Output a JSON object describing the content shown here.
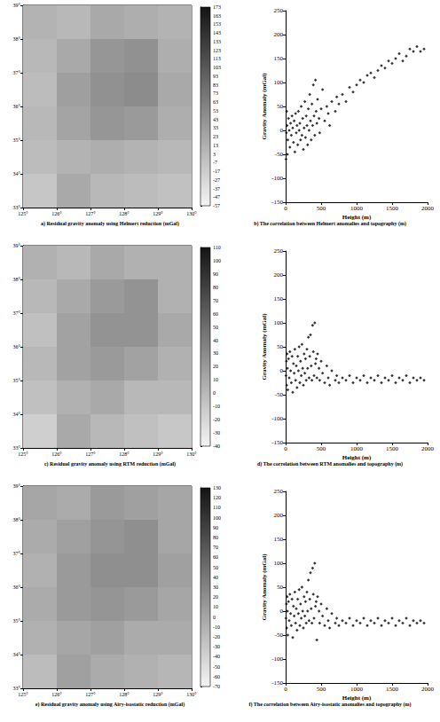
{
  "chart_data": [
    {
      "type": "heatmap",
      "title": "a) Residual gravity anomaly using Helmert reduction (mGal)",
      "xlim": [
        125,
        130
      ],
      "xticks": [
        {
          "value": 125,
          "label": "125°"
        },
        {
          "value": 126,
          "label": "126°"
        },
        {
          "value": 127,
          "label": "127°"
        },
        {
          "value": 128,
          "label": "128°"
        },
        {
          "value": 129,
          "label": "129°"
        },
        {
          "value": 130,
          "label": "130°"
        }
      ],
      "ylim": [
        33,
        39
      ],
      "yticks": [
        {
          "value": 33,
          "label": "33°"
        },
        {
          "value": 34,
          "label": "34°"
        },
        {
          "value": 35,
          "label": "35°"
        },
        {
          "value": 36,
          "label": "36°"
        },
        {
          "value": 37,
          "label": "37°"
        },
        {
          "value": 38,
          "label": "38°"
        },
        {
          "value": 39,
          "label": "39°"
        }
      ],
      "grid": true,
      "x_edges": [
        125,
        126,
        127,
        128,
        129,
        130
      ],
      "y_edges": [
        33,
        34,
        35,
        36,
        37,
        38,
        39
      ],
      "cells": [
        [
          -10,
          20,
          5,
          0,
          -5
        ],
        [
          0,
          10,
          15,
          10,
          5
        ],
        [
          5,
          25,
          40,
          35,
          15
        ],
        [
          0,
          30,
          45,
          50,
          20
        ],
        [
          5,
          20,
          40,
          45,
          15
        ],
        [
          10,
          5,
          20,
          15,
          10
        ]
      ],
      "colorbar": {
        "range": [
          -57,
          173
        ],
        "ticks": [
          -57,
          -47,
          -37,
          -27,
          -17,
          -7,
          3,
          13,
          23,
          33,
          43,
          53,
          63,
          73,
          83,
          93,
          103,
          113,
          123,
          133,
          143,
          153,
          163,
          173
        ]
      }
    },
    {
      "type": "scatter",
      "title": "b) The correlation between Helmert anomalies and topography (m)",
      "x_label": "Height (m)",
      "y_label": "Gravity Anomaly (mGal)",
      "xlim": [
        0,
        2000
      ],
      "xticks": [
        0,
        500,
        1000,
        1500,
        2000
      ],
      "ylim": [
        -150,
        250
      ],
      "yticks": [
        -150,
        -100,
        -50,
        0,
        50,
        100,
        150,
        200,
        250
      ],
      "grid": false,
      "series": [
        {
          "color": "#000000",
          "marker": "diamond",
          "x": [
            5,
            10,
            15,
            20,
            25,
            30,
            40,
            50,
            60,
            70,
            80,
            90,
            100,
            110,
            120,
            130,
            140,
            150,
            160,
            170,
            180,
            190,
            200,
            210,
            220,
            230,
            240,
            250,
            260,
            270,
            280,
            290,
            300,
            310,
            320,
            330,
            340,
            350,
            360,
            370,
            380,
            390,
            400,
            410,
            420,
            430,
            440,
            450,
            470,
            480,
            500,
            520,
            550,
            580,
            600,
            620,
            650,
            700,
            720,
            750,
            800,
            850,
            900,
            950,
            1000,
            1050,
            1100,
            1150,
            1200,
            1250,
            1300,
            1350,
            1400,
            1450,
            1500,
            1550,
            1600,
            1650,
            1700,
            1750,
            1800,
            1850,
            1900,
            1950
          ],
          "values": [
            -60,
            -5,
            40,
            10,
            -50,
            -20,
            25,
            0,
            -35,
            15,
            -10,
            30,
            5,
            -25,
            20,
            -45,
            35,
            -5,
            10,
            -30,
            40,
            0,
            15,
            -20,
            50,
            -10,
            25,
            -40,
            5,
            60,
            -15,
            30,
            10,
            -30,
            45,
            0,
            75,
            20,
            -20,
            55,
            10,
            95,
            30,
            -10,
            105,
            40,
            15,
            65,
            25,
            -5,
            45,
            85,
            20,
            50,
            35,
            10,
            60,
            40,
            70,
            55,
            75,
            60,
            90,
            80,
            95,
            105,
            100,
            115,
            120,
            110,
            125,
            135,
            130,
            145,
            140,
            150,
            160,
            145,
            155,
            170,
            165,
            175,
            165,
            170
          ]
        }
      ]
    },
    {
      "type": "heatmap",
      "title": "c) Residual gravity anomaly using RTM reduction (mGal)",
      "xlim": [
        125,
        130
      ],
      "xticks": [
        {
          "value": 125,
          "label": "125°"
        },
        {
          "value": 126,
          "label": "126°"
        },
        {
          "value": 127,
          "label": "127°"
        },
        {
          "value": 128,
          "label": "128°"
        },
        {
          "value": 129,
          "label": "129°"
        },
        {
          "value": 130,
          "label": "130°"
        }
      ],
      "ylim": [
        33,
        39
      ],
      "yticks": [
        {
          "value": 33,
          "label": "33°"
        },
        {
          "value": 34,
          "label": "34°"
        },
        {
          "value": 35,
          "label": "35°"
        },
        {
          "value": 36,
          "label": "36°"
        },
        {
          "value": 37,
          "label": "37°"
        },
        {
          "value": 38,
          "label": "38°"
        },
        {
          "value": 39,
          "label": "39°"
        }
      ],
      "grid": true,
      "x_edges": [
        125,
        126,
        127,
        128,
        129,
        130
      ],
      "y_edges": [
        33,
        34,
        35,
        36,
        37,
        38,
        39
      ],
      "cells": [
        [
          -15,
          10,
          0,
          -5,
          -10
        ],
        [
          -5,
          5,
          10,
          0,
          0
        ],
        [
          0,
          15,
          20,
          15,
          5
        ],
        [
          -5,
          15,
          25,
          25,
          10
        ],
        [
          0,
          10,
          20,
          25,
          5
        ],
        [
          5,
          0,
          10,
          5,
          5
        ]
      ],
      "colorbar": {
        "range": [
          -40,
          110
        ],
        "ticks": [
          -40,
          -30,
          -20,
          -10,
          0,
          10,
          20,
          30,
          40,
          50,
          60,
          70,
          80,
          90,
          100,
          110
        ]
      }
    },
    {
      "type": "scatter",
      "title": "d) The correlation between RTM anomalies and topography (m)",
      "x_label": "Height (m)",
      "y_label": "Gravity Anomaly (mGal)",
      "xlim": [
        0,
        2000
      ],
      "xticks": [
        0,
        500,
        1000,
        1500,
        2000
      ],
      "ylim": [
        -150,
        250
      ],
      "yticks": [
        -150,
        -100,
        -50,
        0,
        50,
        100,
        150,
        200,
        250
      ],
      "grid": false,
      "series": [
        {
          "color": "#000000",
          "marker": "diamond",
          "x": [
            5,
            10,
            15,
            20,
            25,
            30,
            40,
            50,
            60,
            70,
            80,
            90,
            100,
            110,
            120,
            130,
            140,
            150,
            160,
            170,
            180,
            190,
            200,
            210,
            220,
            230,
            240,
            250,
            260,
            270,
            280,
            290,
            300,
            310,
            320,
            330,
            340,
            350,
            360,
            370,
            380,
            390,
            400,
            410,
            420,
            430,
            440,
            450,
            470,
            480,
            500,
            520,
            550,
            580,
            600,
            620,
            650,
            700,
            720,
            750,
            800,
            850,
            900,
            950,
            1000,
            1050,
            1100,
            1150,
            1200,
            1250,
            1300,
            1350,
            1400,
            1450,
            1500,
            1550,
            1600,
            1650,
            1700,
            1750,
            1800,
            1850,
            1900,
            1950
          ],
          "values": [
            -10,
            20,
            -30,
            35,
            5,
            -40,
            25,
            -15,
            40,
            0,
            -25,
            30,
            -45,
            15,
            -5,
            45,
            -20,
            10,
            -35,
            30,
            0,
            50,
            -25,
            20,
            -10,
            55,
            5,
            -30,
            35,
            -5,
            25,
            -20,
            45,
            5,
            70,
            -15,
            30,
            75,
            10,
            -20,
            95,
            40,
            -10,
            100,
            15,
            25,
            -15,
            35,
            5,
            -20,
            20,
            -5,
            -25,
            10,
            -15,
            -30,
            0,
            -20,
            -10,
            -25,
            -15,
            -20,
            -10,
            -25,
            -15,
            -20,
            -10,
            -25,
            -15,
            -20,
            -10,
            -25,
            -15,
            -20,
            -10,
            -25,
            -15,
            -20,
            -10,
            -25,
            -15,
            -20,
            -15,
            -20
          ]
        }
      ]
    },
    {
      "type": "heatmap",
      "title": "e) Residual gravity anomaly using Airy-isostatic reduction (mGal)",
      "xlim": [
        125,
        130
      ],
      "xticks": [
        {
          "value": 125,
          "label": "125°"
        },
        {
          "value": 126,
          "label": "126°"
        },
        {
          "value": 127,
          "label": "127°"
        },
        {
          "value": 128,
          "label": "128°"
        },
        {
          "value": 129,
          "label": "129°"
        },
        {
          "value": 130,
          "label": "130°"
        }
      ],
      "ylim": [
        33,
        39
      ],
      "yticks": [
        {
          "value": 33,
          "label": "33°"
        },
        {
          "value": 34,
          "label": "34°"
        },
        {
          "value": 35,
          "label": "35°"
        },
        {
          "value": 36,
          "label": "36°"
        },
        {
          "value": 37,
          "label": "37°"
        },
        {
          "value": 38,
          "label": "38°"
        },
        {
          "value": 39,
          "label": "39°"
        }
      ],
      "grid": true,
      "x_edges": [
        125,
        126,
        127,
        128,
        129,
        130
      ],
      "y_edges": [
        33,
        34,
        35,
        36,
        37,
        38,
        39
      ],
      "cells": [
        [
          -20,
          5,
          -5,
          -10,
          -15
        ],
        [
          -10,
          0,
          5,
          -5,
          -5
        ],
        [
          -5,
          10,
          15,
          10,
          0
        ],
        [
          -10,
          10,
          20,
          20,
          5
        ],
        [
          -5,
          5,
          15,
          20,
          0
        ],
        [
          0,
          -5,
          10,
          5,
          0
        ]
      ],
      "colorbar": {
        "range": [
          -70,
          130
        ],
        "ticks": [
          -70,
          -60,
          -50,
          -40,
          -30,
          -20,
          -10,
          0,
          10,
          20,
          30,
          40,
          50,
          60,
          70,
          80,
          90,
          100,
          110,
          120,
          130
        ]
      }
    },
    {
      "type": "scatter",
      "title": "f) The correlation between Airy-isostatic anomalies and topography (m)",
      "x_label": "Height (m)",
      "y_label": "Gravity Anomaly (mGal)",
      "xlim": [
        0,
        2000
      ],
      "xticks": [
        0,
        500,
        1000,
        1500,
        2000
      ],
      "ylim": [
        -150,
        250
      ],
      "yticks": [
        -150,
        -100,
        -50,
        0,
        50,
        100,
        150,
        200,
        250
      ],
      "grid": false,
      "series": [
        {
          "color": "#000000",
          "marker": "diamond",
          "x": [
            5,
            10,
            15,
            20,
            25,
            30,
            40,
            50,
            60,
            70,
            80,
            90,
            100,
            110,
            120,
            130,
            140,
            150,
            160,
            170,
            180,
            190,
            200,
            210,
            220,
            230,
            240,
            250,
            260,
            270,
            280,
            290,
            300,
            310,
            320,
            330,
            340,
            350,
            360,
            370,
            380,
            390,
            400,
            410,
            420,
            430,
            440,
            450,
            470,
            480,
            500,
            520,
            550,
            580,
            600,
            620,
            650,
            700,
            720,
            750,
            800,
            850,
            900,
            950,
            1000,
            1050,
            1100,
            1150,
            1200,
            1250,
            1300,
            1350,
            1400,
            1450,
            1500,
            1550,
            1600,
            1650,
            1700,
            1750,
            1800,
            1850,
            1900,
            1950
          ],
          "values": [
            -15,
            15,
            -35,
            30,
            0,
            -50,
            20,
            -20,
            35,
            -5,
            -30,
            25,
            -55,
            10,
            -10,
            40,
            -25,
            5,
            -40,
            25,
            -5,
            45,
            -30,
            15,
            -15,
            50,
            0,
            -35,
            30,
            -10,
            20,
            -25,
            40,
            0,
            65,
            -20,
            25,
            80,
            5,
            -25,
            90,
            35,
            -15,
            100,
            10,
            20,
            -60,
            30,
            0,
            -25,
            15,
            -10,
            -30,
            5,
            -20,
            -35,
            -5,
            -25,
            -15,
            -30,
            -20,
            -25,
            -15,
            -30,
            -20,
            -25,
            -15,
            -30,
            -20,
            -25,
            -15,
            -30,
            -20,
            -25,
            -15,
            -30,
            -20,
            -25,
            -15,
            -30,
            -20,
            -25,
            -20,
            -25
          ]
        }
      ]
    }
  ]
}
